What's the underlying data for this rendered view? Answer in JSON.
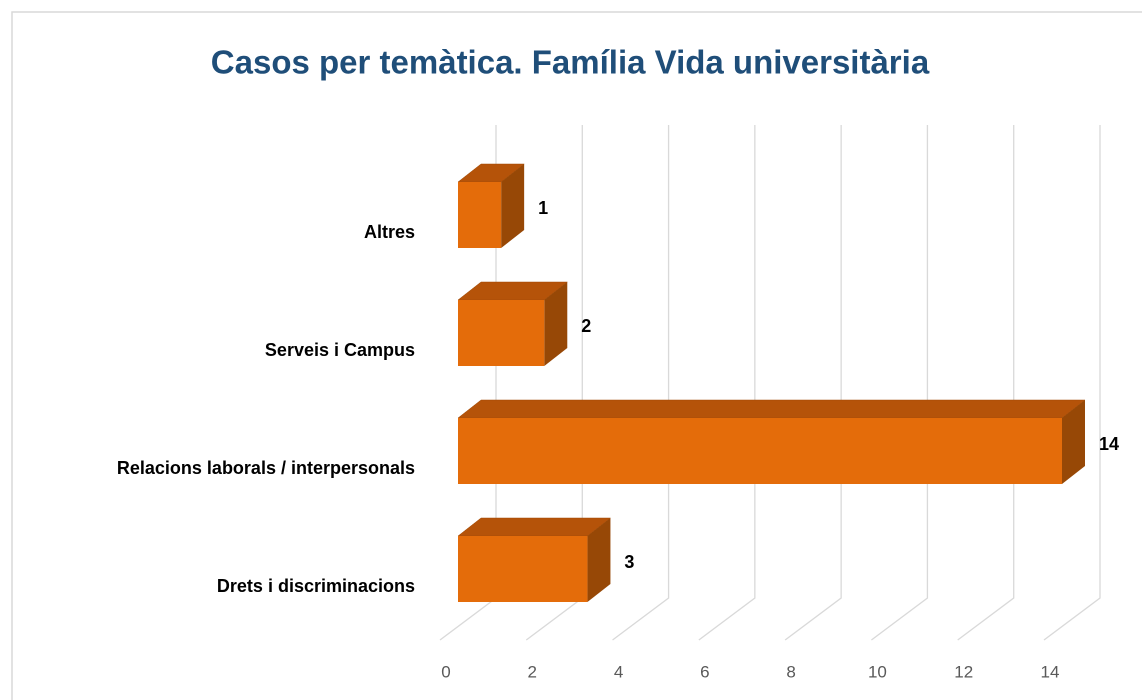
{
  "chart_data": {
    "type": "bar3d",
    "orientation": "horizontal",
    "title": "Casos per temàtica. Família Vida universitària",
    "categories": [
      "Altres",
      "Serveis i Campus",
      "Relacions laborals / interpersonals",
      "Drets i discriminacions"
    ],
    "values": [
      1,
      2,
      14,
      3
    ],
    "color": "#e46c0a",
    "xlim": [
      0,
      14
    ],
    "xticks": [
      0,
      2,
      4,
      6,
      8,
      10,
      12,
      14
    ],
    "grid": true
  }
}
